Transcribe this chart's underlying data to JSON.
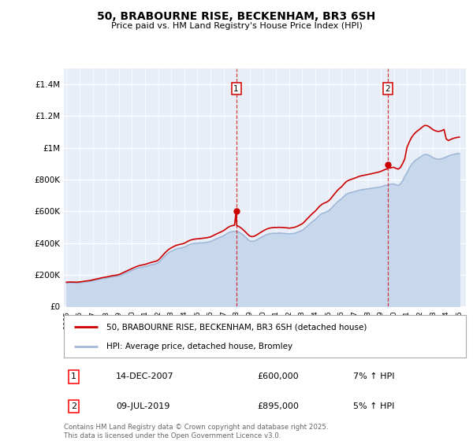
{
  "title": "50, BRABOURNE RISE, BECKENHAM, BR3 6SH",
  "subtitle": "Price paid vs. HM Land Registry's House Price Index (HPI)",
  "ylim": [
    0,
    1500000
  ],
  "yticks": [
    0,
    200000,
    400000,
    600000,
    800000,
    1000000,
    1200000,
    1400000
  ],
  "ytick_labels": [
    "£0",
    "£200K",
    "£400K",
    "£600K",
    "£800K",
    "£1M",
    "£1.2M",
    "£1.4M"
  ],
  "background_color": "#ffffff",
  "plot_bg_color": "#e8eef8",
  "grid_color": "#ffffff",
  "hpi_color": "#a0b8d8",
  "hpi_fill_color": "#c8d8ec",
  "price_color": "#cc0000",
  "marker1_year": 2007.96,
  "marker2_year": 2019.52,
  "legend_price": "50, BRABOURNE RISE, BECKENHAM, BR3 6SH (detached house)",
  "legend_hpi": "HPI: Average price, detached house, Bromley",
  "annot1_date": "14-DEC-2007",
  "annot1_price": "£600,000",
  "annot1_hpi": "7% ↑ HPI",
  "annot2_date": "09-JUL-2019",
  "annot2_price": "£895,000",
  "annot2_hpi": "5% ↑ HPI",
  "footer": "Contains HM Land Registry data © Crown copyright and database right 2025.\nThis data is licensed under the Open Government Licence v3.0.",
  "hpi_data": [
    [
      1995.0,
      148000
    ],
    [
      1995.17,
      149000
    ],
    [
      1995.33,
      149500
    ],
    [
      1995.5,
      149000
    ],
    [
      1995.67,
      148500
    ],
    [
      1995.83,
      148000
    ],
    [
      1996.0,
      150000
    ],
    [
      1996.17,
      151000
    ],
    [
      1996.33,
      153000
    ],
    [
      1996.5,
      155000
    ],
    [
      1996.67,
      157000
    ],
    [
      1996.83,
      158000
    ],
    [
      1997.0,
      162000
    ],
    [
      1997.17,
      165000
    ],
    [
      1997.33,
      168000
    ],
    [
      1997.5,
      171000
    ],
    [
      1997.67,
      174000
    ],
    [
      1997.83,
      176000
    ],
    [
      1998.0,
      178000
    ],
    [
      1998.17,
      181000
    ],
    [
      1998.33,
      184000
    ],
    [
      1998.5,
      186000
    ],
    [
      1998.67,
      188000
    ],
    [
      1998.83,
      190000
    ],
    [
      1999.0,
      193000
    ],
    [
      1999.17,
      198000
    ],
    [
      1999.33,
      204000
    ],
    [
      1999.5,
      210000
    ],
    [
      1999.67,
      216000
    ],
    [
      1999.83,
      222000
    ],
    [
      2000.0,
      228000
    ],
    [
      2000.17,
      234000
    ],
    [
      2000.33,
      239000
    ],
    [
      2000.5,
      243000
    ],
    [
      2000.67,
      246000
    ],
    [
      2000.83,
      248000
    ],
    [
      2001.0,
      251000
    ],
    [
      2001.17,
      255000
    ],
    [
      2001.33,
      259000
    ],
    [
      2001.5,
      263000
    ],
    [
      2001.67,
      266000
    ],
    [
      2001.83,
      269000
    ],
    [
      2002.0,
      275000
    ],
    [
      2002.17,
      288000
    ],
    [
      2002.33,
      302000
    ],
    [
      2002.5,
      317000
    ],
    [
      2002.67,
      330000
    ],
    [
      2002.83,
      340000
    ],
    [
      2003.0,
      348000
    ],
    [
      2003.17,
      355000
    ],
    [
      2003.33,
      361000
    ],
    [
      2003.5,
      365000
    ],
    [
      2003.67,
      368000
    ],
    [
      2003.83,
      370000
    ],
    [
      2004.0,
      374000
    ],
    [
      2004.17,
      381000
    ],
    [
      2004.33,
      388000
    ],
    [
      2004.5,
      393000
    ],
    [
      2004.67,
      396000
    ],
    [
      2004.83,
      398000
    ],
    [
      2005.0,
      399000
    ],
    [
      2005.17,
      400000
    ],
    [
      2005.33,
      401000
    ],
    [
      2005.5,
      402000
    ],
    [
      2005.67,
      404000
    ],
    [
      2005.83,
      406000
    ],
    [
      2006.0,
      410000
    ],
    [
      2006.17,
      416000
    ],
    [
      2006.33,
      422000
    ],
    [
      2006.5,
      428000
    ],
    [
      2006.67,
      434000
    ],
    [
      2006.83,
      440000
    ],
    [
      2007.0,
      446000
    ],
    [
      2007.17,
      455000
    ],
    [
      2007.33,
      463000
    ],
    [
      2007.5,
      469000
    ],
    [
      2007.67,
      472000
    ],
    [
      2007.83,
      474000
    ],
    [
      2008.0,
      473000
    ],
    [
      2008.17,
      468000
    ],
    [
      2008.33,
      460000
    ],
    [
      2008.5,
      449000
    ],
    [
      2008.67,
      437000
    ],
    [
      2008.83,
      424000
    ],
    [
      2009.0,
      413000
    ],
    [
      2009.17,
      410000
    ],
    [
      2009.33,
      412000
    ],
    [
      2009.5,
      418000
    ],
    [
      2009.67,
      426000
    ],
    [
      2009.83,
      434000
    ],
    [
      2010.0,
      442000
    ],
    [
      2010.17,
      449000
    ],
    [
      2010.33,
      454000
    ],
    [
      2010.5,
      458000
    ],
    [
      2010.67,
      460000
    ],
    [
      2010.83,
      461000
    ],
    [
      2011.0,
      461000
    ],
    [
      2011.17,
      462000
    ],
    [
      2011.33,
      462000
    ],
    [
      2011.5,
      461000
    ],
    [
      2011.67,
      460000
    ],
    [
      2011.83,
      459000
    ],
    [
      2012.0,
      457000
    ],
    [
      2012.17,
      458000
    ],
    [
      2012.33,
      460000
    ],
    [
      2012.5,
      463000
    ],
    [
      2012.67,
      468000
    ],
    [
      2012.83,
      474000
    ],
    [
      2013.0,
      480000
    ],
    [
      2013.17,
      490000
    ],
    [
      2013.33,
      502000
    ],
    [
      2013.5,
      515000
    ],
    [
      2013.67,
      527000
    ],
    [
      2013.83,
      538000
    ],
    [
      2014.0,
      548000
    ],
    [
      2014.17,
      562000
    ],
    [
      2014.33,
      575000
    ],
    [
      2014.5,
      584000
    ],
    [
      2014.67,
      591000
    ],
    [
      2014.83,
      595000
    ],
    [
      2015.0,
      602000
    ],
    [
      2015.17,
      614000
    ],
    [
      2015.33,
      628000
    ],
    [
      2015.5,
      643000
    ],
    [
      2015.67,
      657000
    ],
    [
      2015.83,
      668000
    ],
    [
      2016.0,
      678000
    ],
    [
      2016.17,
      692000
    ],
    [
      2016.33,
      704000
    ],
    [
      2016.5,
      712000
    ],
    [
      2016.67,
      717000
    ],
    [
      2016.83,
      720000
    ],
    [
      2017.0,
      724000
    ],
    [
      2017.17,
      728000
    ],
    [
      2017.33,
      732000
    ],
    [
      2017.5,
      735000
    ],
    [
      2017.67,
      737000
    ],
    [
      2017.83,
      739000
    ],
    [
      2018.0,
      741000
    ],
    [
      2018.17,
      743000
    ],
    [
      2018.33,
      745000
    ],
    [
      2018.5,
      747000
    ],
    [
      2018.67,
      749000
    ],
    [
      2018.83,
      751000
    ],
    [
      2019.0,
      754000
    ],
    [
      2019.17,
      758000
    ],
    [
      2019.33,
      762000
    ],
    [
      2019.5,
      765000
    ],
    [
      2019.67,
      768000
    ],
    [
      2019.83,
      771000
    ],
    [
      2020.0,
      772000
    ],
    [
      2020.17,
      766000
    ],
    [
      2020.33,
      762000
    ],
    [
      2020.5,
      771000
    ],
    [
      2020.67,
      793000
    ],
    [
      2020.83,
      818000
    ],
    [
      2021.0,
      843000
    ],
    [
      2021.17,
      870000
    ],
    [
      2021.33,
      892000
    ],
    [
      2021.5,
      909000
    ],
    [
      2021.67,
      922000
    ],
    [
      2021.83,
      931000
    ],
    [
      2022.0,
      940000
    ],
    [
      2022.17,
      950000
    ],
    [
      2022.33,
      957000
    ],
    [
      2022.5,
      958000
    ],
    [
      2022.67,
      953000
    ],
    [
      2022.83,
      945000
    ],
    [
      2023.0,
      937000
    ],
    [
      2023.17,
      931000
    ],
    [
      2023.33,
      928000
    ],
    [
      2023.5,
      928000
    ],
    [
      2023.67,
      931000
    ],
    [
      2023.83,
      936000
    ],
    [
      2024.0,
      942000
    ],
    [
      2024.17,
      948000
    ],
    [
      2024.33,
      953000
    ],
    [
      2024.5,
      957000
    ],
    [
      2024.67,
      960000
    ],
    [
      2024.83,
      962000
    ],
    [
      2025.0,
      964000
    ]
  ],
  "price_data": [
    [
      1995.0,
      153000
    ],
    [
      1995.17,
      154000
    ],
    [
      1995.33,
      154500
    ],
    [
      1995.5,
      154000
    ],
    [
      1995.67,
      153500
    ],
    [
      1995.83,
      153000
    ],
    [
      1996.0,
      155000
    ],
    [
      1996.17,
      156500
    ],
    [
      1996.33,
      158500
    ],
    [
      1996.5,
      160500
    ],
    [
      1996.67,
      162500
    ],
    [
      1996.83,
      164000
    ],
    [
      1997.0,
      168000
    ],
    [
      1997.17,
      171000
    ],
    [
      1997.33,
      174000
    ],
    [
      1997.5,
      177000
    ],
    [
      1997.67,
      180500
    ],
    [
      1997.83,
      183000
    ],
    [
      1998.0,
      185000
    ],
    [
      1998.17,
      188000
    ],
    [
      1998.33,
      191500
    ],
    [
      1998.5,
      194000
    ],
    [
      1998.67,
      196000
    ],
    [
      1998.83,
      198000
    ],
    [
      1999.0,
      201000
    ],
    [
      1999.17,
      207000
    ],
    [
      1999.33,
      213500
    ],
    [
      1999.5,
      220000
    ],
    [
      1999.67,
      226500
    ],
    [
      1999.83,
      233000
    ],
    [
      2000.0,
      239000
    ],
    [
      2000.17,
      245500
    ],
    [
      2000.33,
      251000
    ],
    [
      2000.5,
      256000
    ],
    [
      2000.67,
      259500
    ],
    [
      2000.83,
      262000
    ],
    [
      2001.0,
      265000
    ],
    [
      2001.17,
      269500
    ],
    [
      2001.33,
      274000
    ],
    [
      2001.5,
      278500
    ],
    [
      2001.67,
      282000
    ],
    [
      2001.83,
      285000
    ],
    [
      2002.0,
      291500
    ],
    [
      2002.17,
      305500
    ],
    [
      2002.33,
      320500
    ],
    [
      2002.5,
      336000
    ],
    [
      2002.67,
      350000
    ],
    [
      2002.83,
      361000
    ],
    [
      2003.0,
      369500
    ],
    [
      2003.17,
      377000
    ],
    [
      2003.33,
      383500
    ],
    [
      2003.5,
      388000
    ],
    [
      2003.67,
      391500
    ],
    [
      2003.83,
      394000
    ],
    [
      2004.0,
      398500
    ],
    [
      2004.17,
      406000
    ],
    [
      2004.33,
      413500
    ],
    [
      2004.5,
      419000
    ],
    [
      2004.67,
      422500
    ],
    [
      2004.83,
      425000
    ],
    [
      2005.0,
      426000
    ],
    [
      2005.17,
      427500
    ],
    [
      2005.33,
      429000
    ],
    [
      2005.5,
      430500
    ],
    [
      2005.67,
      432500
    ],
    [
      2005.83,
      435000
    ],
    [
      2006.0,
      438500
    ],
    [
      2006.17,
      445000
    ],
    [
      2006.33,
      452000
    ],
    [
      2006.5,
      458500
    ],
    [
      2006.67,
      465000
    ],
    [
      2006.83,
      471500
    ],
    [
      2007.0,
      478000
    ],
    [
      2007.17,
      488000
    ],
    [
      2007.33,
      498000
    ],
    [
      2007.5,
      505500
    ],
    [
      2007.67,
      509500
    ],
    [
      2007.83,
      512000
    ],
    [
      2007.96,
      600000
    ],
    [
      2008.0,
      510000
    ],
    [
      2008.17,
      503500
    ],
    [
      2008.33,
      494500
    ],
    [
      2008.5,
      482500
    ],
    [
      2008.67,
      469500
    ],
    [
      2008.83,
      455500
    ],
    [
      2009.0,
      443500
    ],
    [
      2009.17,
      440000
    ],
    [
      2009.33,
      442500
    ],
    [
      2009.5,
      449500
    ],
    [
      2009.67,
      458500
    ],
    [
      2009.83,
      467000
    ],
    [
      2010.0,
      475500
    ],
    [
      2010.17,
      483000
    ],
    [
      2010.33,
      489000
    ],
    [
      2010.5,
      493500
    ],
    [
      2010.67,
      496000
    ],
    [
      2010.83,
      497500
    ],
    [
      2011.0,
      497500
    ],
    [
      2011.17,
      498500
    ],
    [
      2011.33,
      498500
    ],
    [
      2011.5,
      497500
    ],
    [
      2011.67,
      496500
    ],
    [
      2011.83,
      495500
    ],
    [
      2012.0,
      493500
    ],
    [
      2012.17,
      495000
    ],
    [
      2012.33,
      497500
    ],
    [
      2012.5,
      501000
    ],
    [
      2012.67,
      507000
    ],
    [
      2012.83,
      514000
    ],
    [
      2013.0,
      521000
    ],
    [
      2013.17,
      533000
    ],
    [
      2013.33,
      548000
    ],
    [
      2013.5,
      562500
    ],
    [
      2013.67,
      576500
    ],
    [
      2013.83,
      589000
    ],
    [
      2014.0,
      601000
    ],
    [
      2014.17,
      617000
    ],
    [
      2014.33,
      632000
    ],
    [
      2014.5,
      643000
    ],
    [
      2014.67,
      651000
    ],
    [
      2014.83,
      656000
    ],
    [
      2015.0,
      664000
    ],
    [
      2015.17,
      678000
    ],
    [
      2015.33,
      695000
    ],
    [
      2015.5,
      712500
    ],
    [
      2015.67,
      729500
    ],
    [
      2015.83,
      742500
    ],
    [
      2016.0,
      754000
    ],
    [
      2016.17,
      770000
    ],
    [
      2016.33,
      784000
    ],
    [
      2016.5,
      793000
    ],
    [
      2016.67,
      799000
    ],
    [
      2016.83,
      803000
    ],
    [
      2017.0,
      808000
    ],
    [
      2017.17,
      813500
    ],
    [
      2017.33,
      819000
    ],
    [
      2017.5,
      823000
    ],
    [
      2017.67,
      826000
    ],
    [
      2017.83,
      828500
    ],
    [
      2018.0,
      831000
    ],
    [
      2018.17,
      834000
    ],
    [
      2018.33,
      837000
    ],
    [
      2018.5,
      840000
    ],
    [
      2018.67,
      843000
    ],
    [
      2018.83,
      846500
    ],
    [
      2019.0,
      851000
    ],
    [
      2019.17,
      857000
    ],
    [
      2019.33,
      863000
    ],
    [
      2019.5,
      867000
    ],
    [
      2019.52,
      895000
    ],
    [
      2019.67,
      871000
    ],
    [
      2019.83,
      875000
    ],
    [
      2020.0,
      877000
    ],
    [
      2020.17,
      869500
    ],
    [
      2020.33,
      865500
    ],
    [
      2020.5,
      875500
    ],
    [
      2020.67,
      901000
    ],
    [
      2020.83,
      929500
    ],
    [
      2021.0,
      1002000
    ],
    [
      2021.17,
      1035000
    ],
    [
      2021.33,
      1062000
    ],
    [
      2021.5,
      1082000
    ],
    [
      2021.67,
      1097000
    ],
    [
      2021.83,
      1108000
    ],
    [
      2022.0,
      1118000
    ],
    [
      2022.17,
      1130000
    ],
    [
      2022.33,
      1140000
    ],
    [
      2022.5,
      1140000
    ],
    [
      2022.67,
      1134000
    ],
    [
      2022.83,
      1124000
    ],
    [
      2023.0,
      1113000
    ],
    [
      2023.17,
      1107000
    ],
    [
      2023.33,
      1103000
    ],
    [
      2023.5,
      1104000
    ],
    [
      2023.67,
      1108000
    ],
    [
      2023.83,
      1115000
    ],
    [
      2024.0,
      1055000
    ],
    [
      2024.17,
      1045000
    ],
    [
      2024.33,
      1052000
    ],
    [
      2024.5,
      1058000
    ],
    [
      2024.67,
      1062000
    ],
    [
      2024.83,
      1065000
    ],
    [
      2025.0,
      1067000
    ]
  ],
  "xmin": 1994.8,
  "xmax": 2025.5,
  "xtick_years": [
    1995,
    1996,
    1997,
    1998,
    1999,
    2000,
    2001,
    2002,
    2003,
    2004,
    2005,
    2006,
    2007,
    2008,
    2009,
    2010,
    2011,
    2012,
    2013,
    2014,
    2015,
    2016,
    2017,
    2018,
    2019,
    2020,
    2021,
    2022,
    2023,
    2024,
    2025
  ]
}
